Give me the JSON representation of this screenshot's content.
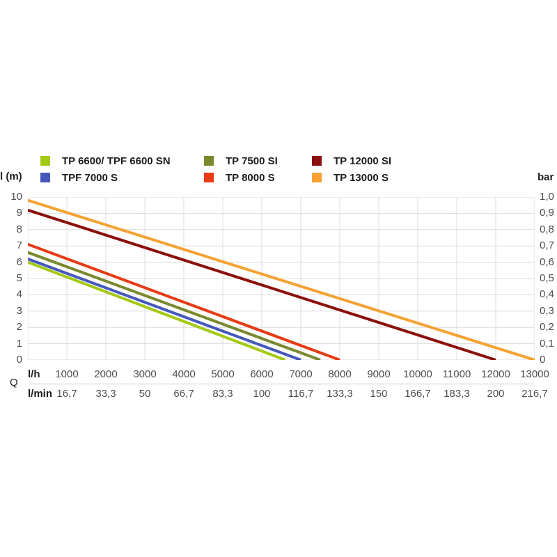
{
  "chart_data": {
    "type": "line",
    "title": "",
    "legend_position": "top",
    "grid": true,
    "x_axis": {
      "label": "Q",
      "range": [
        0,
        13000
      ],
      "gridline_step": 1000,
      "rows": [
        {
          "unit": "l/h",
          "ticks": [
            "1000",
            "2000",
            "3000",
            "4000",
            "5000",
            "6000",
            "7000",
            "8000",
            "9000",
            "10000",
            "11000",
            "12000",
            "13000"
          ]
        },
        {
          "unit": "l/min",
          "ticks": [
            "16,7",
            "33,3",
            "50",
            "66,7",
            "83,3",
            "100",
            "116,7",
            "133,3",
            "150",
            "166,7",
            "183,3",
            "200",
            "216,7"
          ]
        }
      ]
    },
    "y_axis_left": {
      "label": "l (m)",
      "range": [
        0,
        10
      ],
      "gridline_step": 1,
      "ticks": [
        "10",
        "9",
        "8",
        "7",
        "6",
        "5",
        "4",
        "3",
        "2",
        "1",
        "0"
      ]
    },
    "y_axis_right": {
      "label": "bar",
      "range": [
        0,
        1.0
      ],
      "ticks": [
        "1,0",
        "0,9",
        "0,8",
        "0,7",
        "0,6",
        "0,5",
        "0,4",
        "0,3",
        "0,2",
        "0,1",
        "0"
      ]
    },
    "series": [
      {
        "name": "TP 6600/ TPF 6600 SN",
        "color": "#A3C914",
        "points": [
          [
            0,
            6.0
          ],
          [
            6600,
            0
          ]
        ]
      },
      {
        "name": "TPF 7000 S",
        "color": "#4458BC",
        "points": [
          [
            0,
            6.2
          ],
          [
            7000,
            0
          ]
        ]
      },
      {
        "name": "TP 7500 SI",
        "color": "#79892D",
        "points": [
          [
            0,
            6.6
          ],
          [
            7500,
            0
          ]
        ]
      },
      {
        "name": "TP 8000 S",
        "color": "#E63B15",
        "points": [
          [
            0,
            7.1
          ],
          [
            8000,
            0
          ]
        ]
      },
      {
        "name": "TP 12000 SI",
        "color": "#8C100C",
        "points": [
          [
            0,
            9.2
          ],
          [
            12000,
            0
          ]
        ]
      },
      {
        "name": "TP 13000 S",
        "color": "#F5A233",
        "points": [
          [
            0,
            9.8
          ],
          [
            13000,
            0
          ]
        ]
      }
    ],
    "colors": {
      "gridline": "#DBDBDB",
      "tick_text": "#4D4D4D",
      "label_text": "#1D1D1B",
      "divider": "#C8C8C8",
      "background": "#FFFFFF"
    }
  }
}
